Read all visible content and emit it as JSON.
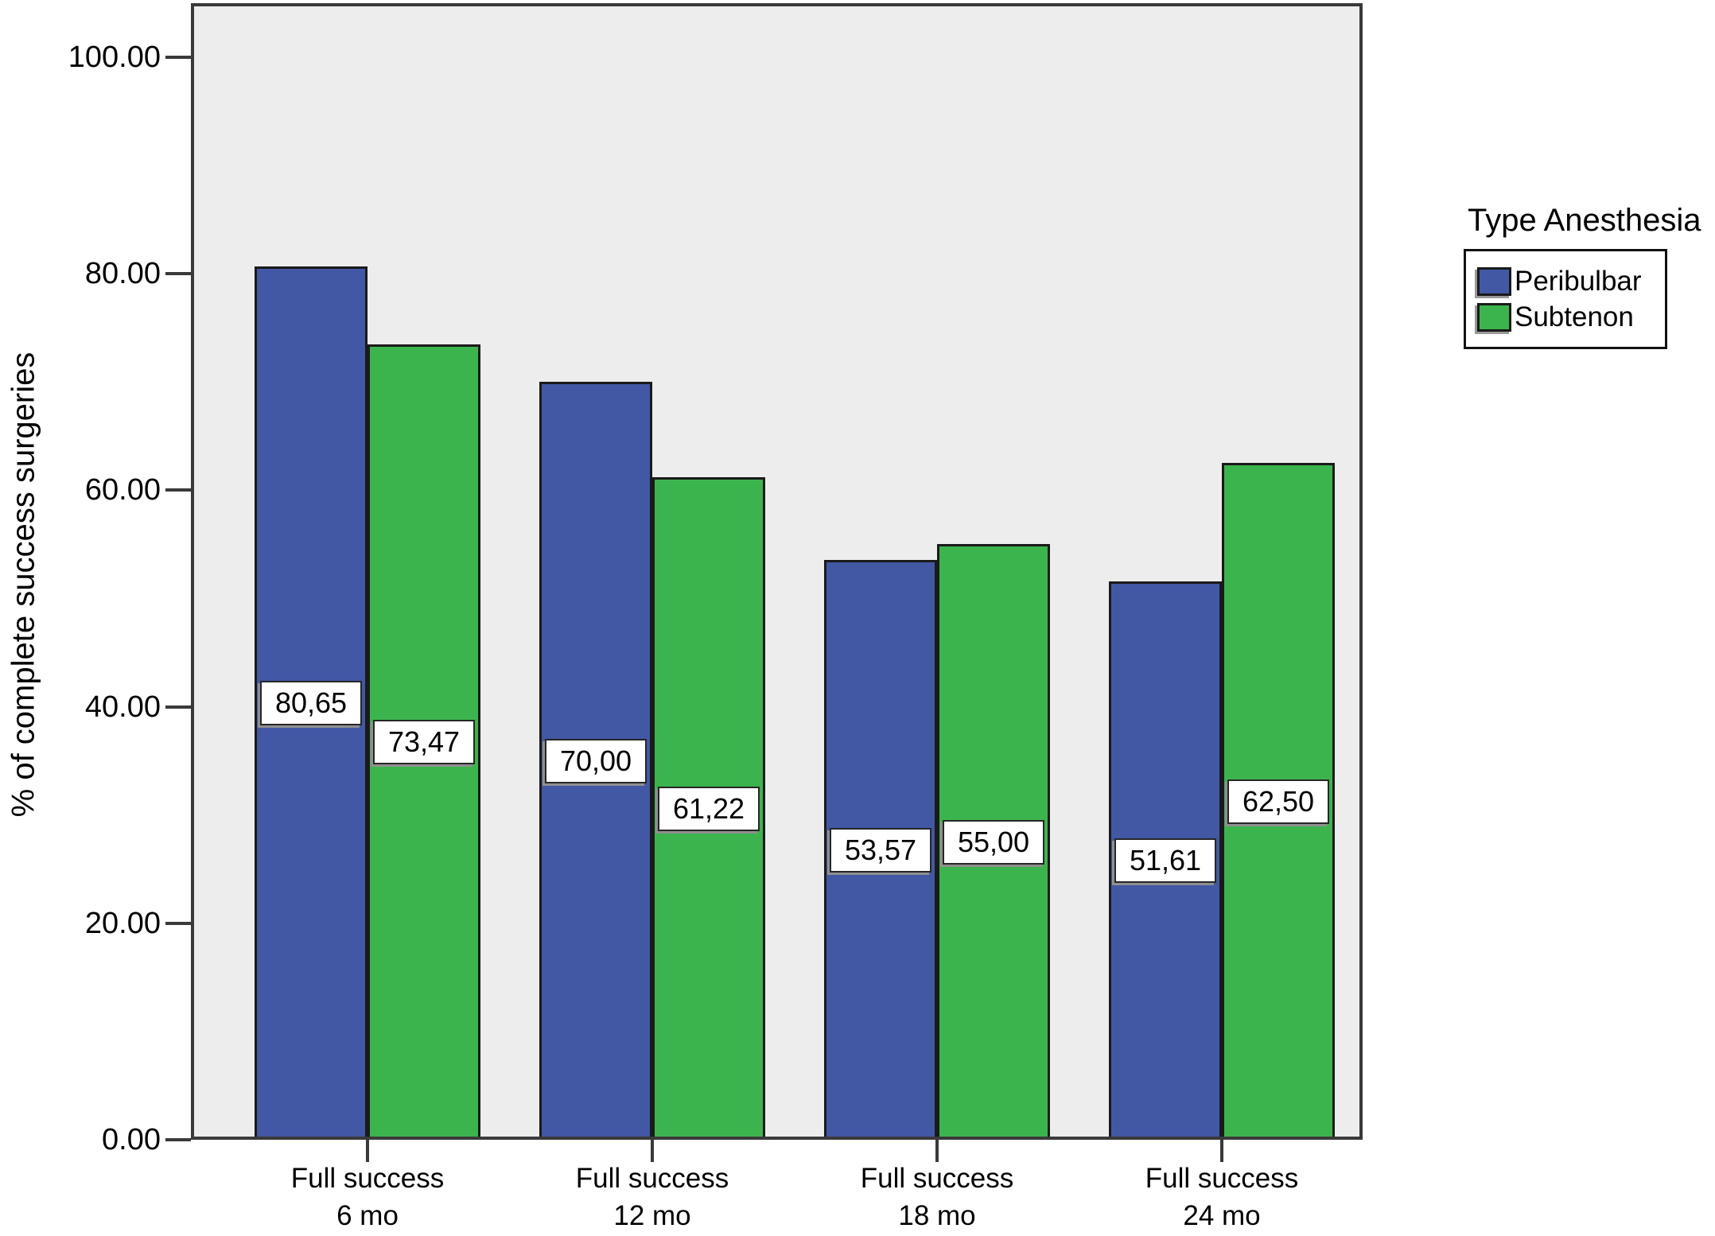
{
  "chart_data": {
    "type": "bar",
    "title": "",
    "xlabel": "",
    "ylabel": "% of complete success surgeries",
    "ylim": [
      0,
      100
    ],
    "yticks": [
      0,
      20,
      40,
      60,
      80,
      100
    ],
    "ytick_labels": [
      "0.00",
      "20.00",
      "40.00",
      "60.00",
      "80.00",
      "100.00"
    ],
    "categories": [
      {
        "line1": "Full success",
        "line2": "6 mo"
      },
      {
        "line1": "Full success",
        "line2": "12 mo"
      },
      {
        "line1": "Full success",
        "line2": "18 mo"
      },
      {
        "line1": "Full success",
        "line2": "24 mo"
      }
    ],
    "series": [
      {
        "name": "Peribulbar",
        "color": "#4258A4",
        "values": [
          80.65,
          70.0,
          53.57,
          51.61
        ],
        "value_labels": [
          "80,65",
          "70,00",
          "53,57",
          "51,61"
        ]
      },
      {
        "name": "Subtenon",
        "color": "#3CB44D",
        "values": [
          73.47,
          61.22,
          55.0,
          62.5
        ],
        "value_labels": [
          "73,47",
          "61,22",
          "55,00",
          "62,50"
        ]
      }
    ],
    "legend_title": "Type Anesthesia",
    "legend_position": "right",
    "grid": false,
    "plot_background": "#EDEDED"
  }
}
